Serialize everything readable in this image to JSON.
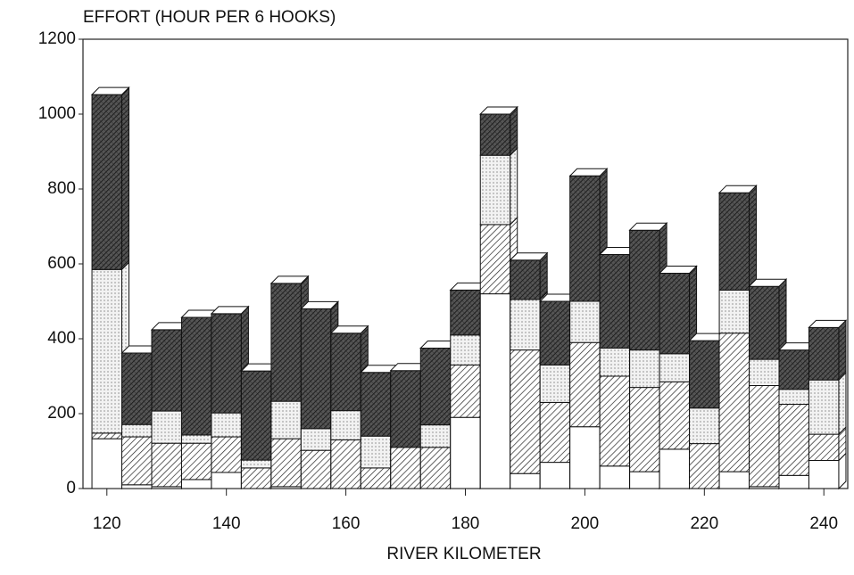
{
  "chart_data": {
    "type": "stacked_bar_3d",
    "title": "EFFORT (HOUR PER 6 HOOKS)",
    "x_label": "RIVER KILOMETER",
    "x": [
      120,
      125,
      130,
      135,
      140,
      145,
      150,
      155,
      160,
      165,
      170,
      175,
      180,
      185,
      190,
      195,
      200,
      205,
      210,
      215,
      220,
      225,
      230,
      235,
      240
    ],
    "bar_width": 5,
    "series": [
      {
        "color": "#ffffff",
        "pattern": "none",
        "values": [
          133,
          10,
          5,
          24,
          43,
          0,
          5,
          0,
          0,
          0,
          0,
          0,
          190,
          520,
          40,
          70,
          165,
          60,
          45,
          105,
          0,
          45,
          5,
          35,
          75
        ]
      },
      {
        "color": "#ffffff",
        "pattern": "hatch",
        "values": [
          15,
          128,
          116,
          97,
          95,
          55,
          128,
          102,
          130,
          55,
          110,
          110,
          140,
          185,
          330,
          160,
          225,
          240,
          225,
          180,
          120,
          370,
          270,
          190,
          70
        ]
      },
      {
        "color": "#ffffff",
        "pattern": "dots",
        "values": [
          437,
          33,
          86,
          22,
          64,
          21,
          100,
          58,
          78,
          85,
          0,
          60,
          80,
          185,
          135,
          100,
          110,
          75,
          100,
          75,
          95,
          115,
          70,
          40,
          145
        ]
      },
      {
        "color": "#ffffff",
        "pattern": "crosshatch",
        "values": [
          467,
          191,
          217,
          314,
          265,
          238,
          315,
          320,
          207,
          170,
          205,
          205,
          120,
          110,
          105,
          170,
          335,
          250,
          320,
          215,
          180,
          260,
          195,
          105,
          140
        ]
      }
    ],
    "xlim": [
      116,
      244
    ],
    "xticks": [
      120,
      140,
      160,
      180,
      200,
      220,
      240
    ],
    "ylim": [
      0,
      1200
    ],
    "yticks": [
      0,
      200,
      400,
      600,
      800,
      1000,
      1200
    ]
  }
}
